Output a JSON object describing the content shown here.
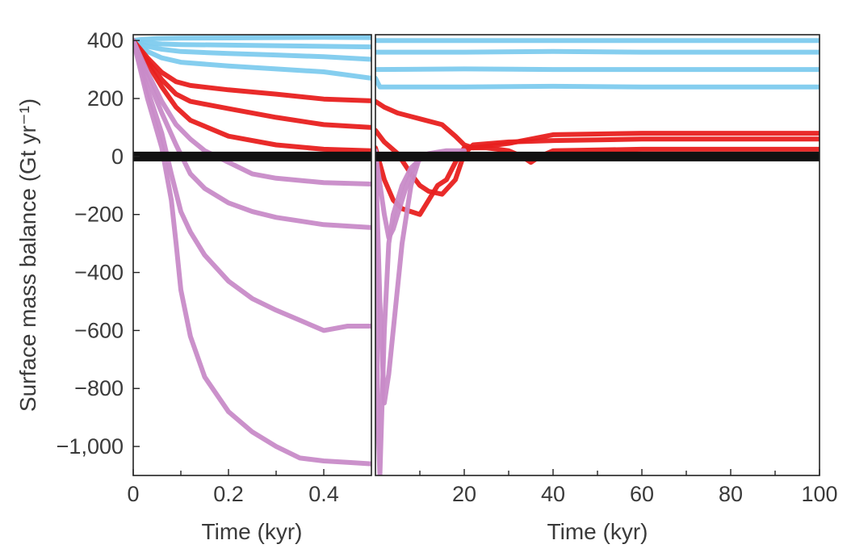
{
  "chart_data": [
    {
      "type": "line",
      "panel": "left",
      "xlabel": "Time (kyr)",
      "ylabel": "Surface mass balance (Gt yr⁻¹)",
      "xlim": [
        0,
        0.5
      ],
      "ylim": [
        -1100,
        420
      ],
      "x_ticks": [
        0,
        0.2,
        0.4
      ],
      "x_tick_labels": [
        "0",
        "0.2",
        "0.4"
      ],
      "x_minor_ticks": [
        0.1,
        0.3
      ],
      "y_ticks": [
        400,
        200,
        0,
        -200,
        -400,
        -600,
        -800,
        -1000
      ],
      "y_tick_labels": [
        "400",
        "200",
        "0",
        "−200",
        "−400",
        "−600",
        "−800",
        "−1,000"
      ],
      "colors": {
        "blue": "#7ecbee",
        "red": "#e8201f",
        "purple": "#c88bc8",
        "zero": "#111111"
      },
      "series": [
        {
          "color": "blue",
          "x": [
            0,
            0.02,
            0.05,
            0.1,
            0.2,
            0.3,
            0.4,
            0.5
          ],
          "y": [
            400,
            404,
            407,
            408,
            409,
            410,
            411,
            410
          ]
        },
        {
          "color": "blue",
          "x": [
            0,
            0.03,
            0.06,
            0.1,
            0.2,
            0.3,
            0.4,
            0.5
          ],
          "y": [
            400,
            392,
            388,
            386,
            384,
            382,
            380,
            378
          ]
        },
        {
          "color": "blue",
          "x": [
            0,
            0.03,
            0.06,
            0.1,
            0.2,
            0.3,
            0.4,
            0.5
          ],
          "y": [
            400,
            380,
            370,
            362,
            355,
            350,
            344,
            335
          ]
        },
        {
          "color": "blue",
          "x": [
            0,
            0.03,
            0.06,
            0.1,
            0.2,
            0.3,
            0.4,
            0.5
          ],
          "y": [
            400,
            362,
            340,
            325,
            312,
            302,
            292,
            270
          ]
        },
        {
          "color": "red",
          "x": [
            0,
            0.03,
            0.06,
            0.09,
            0.12,
            0.2,
            0.3,
            0.4,
            0.5
          ],
          "y": [
            400,
            340,
            290,
            258,
            245,
            230,
            215,
            198,
            192
          ]
        },
        {
          "color": "red",
          "x": [
            0,
            0.03,
            0.06,
            0.09,
            0.12,
            0.2,
            0.3,
            0.4,
            0.5
          ],
          "y": [
            400,
            330,
            265,
            215,
            190,
            165,
            135,
            110,
            100
          ]
        },
        {
          "color": "red",
          "x": [
            0,
            0.03,
            0.06,
            0.09,
            0.12,
            0.2,
            0.3,
            0.4,
            0.5
          ],
          "y": [
            400,
            320,
            240,
            170,
            125,
            70,
            40,
            25,
            20
          ]
        },
        {
          "color": "purple",
          "x": [
            0,
            0.03,
            0.06,
            0.09,
            0.12,
            0.15,
            0.2,
            0.25,
            0.3,
            0.4,
            0.5
          ],
          "y": [
            400,
            290,
            190,
            110,
            60,
            20,
            -20,
            -60,
            -75,
            -90,
            -95
          ]
        },
        {
          "color": "purple",
          "x": [
            0,
            0.03,
            0.06,
            0.09,
            0.12,
            0.15,
            0.2,
            0.25,
            0.3,
            0.4,
            0.5
          ],
          "y": [
            400,
            270,
            150,
            40,
            -60,
            -110,
            -160,
            -190,
            -210,
            -235,
            -245
          ]
        },
        {
          "color": "purple",
          "x": [
            0,
            0.03,
            0.06,
            0.08,
            0.1,
            0.12,
            0.15,
            0.2,
            0.25,
            0.3,
            0.35,
            0.4,
            0.45,
            0.5
          ],
          "y": [
            400,
            230,
            80,
            -60,
            -190,
            -260,
            -340,
            -430,
            -490,
            -530,
            -565,
            -600,
            -585,
            -585
          ]
        },
        {
          "color": "purple",
          "x": [
            0,
            0.03,
            0.06,
            0.08,
            0.09,
            0.1,
            0.12,
            0.15,
            0.2,
            0.25,
            0.3,
            0.35,
            0.4,
            0.45,
            0.5
          ],
          "y": [
            400,
            200,
            30,
            -150,
            -300,
            -460,
            -620,
            -760,
            -880,
            -950,
            -1000,
            -1040,
            -1050,
            -1055,
            -1060
          ]
        },
        {
          "color": "zero",
          "x": [
            0,
            0.5
          ],
          "y": [
            0,
            0
          ]
        }
      ]
    },
    {
      "type": "line",
      "panel": "right",
      "xlabel": "Time (kyr)",
      "xlim": [
        0,
        100
      ],
      "ylim": [
        -1100,
        420
      ],
      "x_ticks": [
        20,
        40,
        60,
        80,
        100
      ],
      "x_tick_labels": [
        "20",
        "40",
        "60",
        "80",
        "100"
      ],
      "x_minor_ticks": [
        10,
        30,
        50,
        70,
        90
      ],
      "series": [
        {
          "color": "blue",
          "x": [
            0,
            20,
            40,
            60,
            80,
            100
          ],
          "y": [
            400,
            400,
            400,
            400,
            400,
            400
          ]
        },
        {
          "color": "blue",
          "x": [
            0,
            20,
            40,
            60,
            80,
            100
          ],
          "y": [
            360,
            360,
            362,
            360,
            360,
            360
          ]
        },
        {
          "color": "blue",
          "x": [
            0,
            20,
            40,
            60,
            80,
            100
          ],
          "y": [
            300,
            302,
            300,
            300,
            300,
            300
          ]
        },
        {
          "color": "blue",
          "x": [
            0,
            1,
            20,
            40,
            60,
            80,
            100
          ],
          "y": [
            270,
            240,
            240,
            242,
            240,
            240,
            240
          ]
        },
        {
          "color": "red",
          "x": [
            0,
            2,
            5,
            10,
            15,
            18,
            20,
            22,
            30,
            40,
            60,
            80,
            100
          ],
          "y": [
            190,
            170,
            150,
            130,
            110,
            70,
            40,
            30,
            45,
            75,
            80,
            80,
            80
          ]
        },
        {
          "color": "red",
          "x": [
            0,
            2,
            5,
            8,
            10,
            12,
            15,
            18,
            20,
            22,
            30,
            40,
            60,
            80,
            100
          ],
          "y": [
            90,
            50,
            10,
            -60,
            -100,
            -120,
            -130,
            -80,
            10,
            40,
            50,
            55,
            60,
            60,
            60
          ]
        },
        {
          "color": "red",
          "x": [
            0,
            2,
            4,
            6,
            8,
            10,
            12,
            14,
            16,
            18,
            20,
            25,
            30,
            33,
            35,
            37,
            40,
            60,
            80,
            100
          ],
          "y": [
            30,
            -80,
            -150,
            -180,
            -190,
            -200,
            -150,
            -100,
            -80,
            -20,
            30,
            30,
            20,
            0,
            -20,
            0,
            20,
            25,
            25,
            25
          ]
        },
        {
          "color": "purple",
          "x": [
            0,
            1,
            2,
            3,
            4,
            5,
            6,
            7,
            8,
            9,
            10,
            12,
            14,
            16,
            20
          ],
          "y": [
            20,
            -500,
            -850,
            -750,
            -600,
            -450,
            -300,
            -200,
            -100,
            -50,
            0,
            10,
            15,
            20,
            20
          ]
        },
        {
          "color": "purple",
          "x": [
            0,
            0.5,
            1,
            2,
            3,
            4,
            6,
            8,
            10,
            12,
            15,
            20
          ],
          "y": [
            10,
            -900,
            -1100,
            -600,
            -300,
            -200,
            -100,
            -40,
            -10,
            0,
            10,
            10
          ]
        },
        {
          "color": "purple",
          "x": [
            0,
            2,
            3,
            4,
            5,
            6,
            7,
            8,
            9,
            10,
            12,
            14,
            16,
            20
          ],
          "y": [
            10,
            -200,
            -280,
            -250,
            -200,
            -150,
            -100,
            -60,
            -30,
            0,
            5,
            10,
            10,
            10
          ]
        },
        {
          "color": "zero",
          "x": [
            0,
            100
          ],
          "y": [
            0,
            0
          ]
        }
      ]
    }
  ]
}
